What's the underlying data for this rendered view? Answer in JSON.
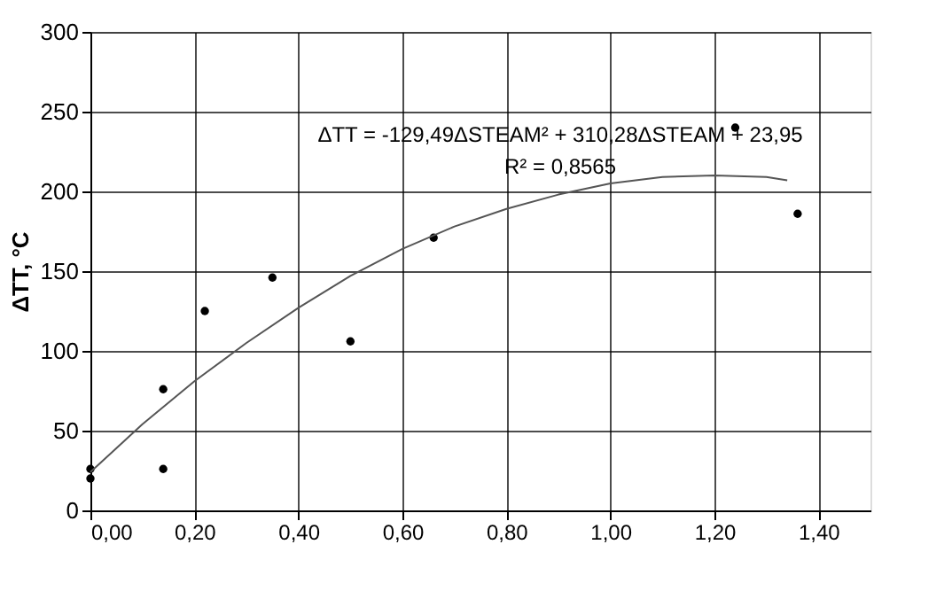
{
  "chart_data": {
    "type": "scatter",
    "ylabel": "ΔTT, °C",
    "xlim": [
      0,
      1.5
    ],
    "xticks": [
      {
        "value": 0,
        "label": "0,00"
      },
      {
        "value": 0.2,
        "label": "0,20"
      },
      {
        "value": 0.4,
        "label": "0,40"
      },
      {
        "value": 0.6,
        "label": "0,60"
      },
      {
        "value": 0.8,
        "label": "0,80"
      },
      {
        "value": 1.0,
        "label": "1,00"
      },
      {
        "value": 1.2,
        "label": "1,20"
      },
      {
        "value": 1.4,
        "label": "1,40"
      }
    ],
    "ylim": [
      0,
      300
    ],
    "yticks": [
      0,
      50,
      100,
      150,
      200,
      250,
      300
    ],
    "grid": true,
    "marker": "circle",
    "annotations": [
      "ΔTT = -129,49ΔSTEAM² + 310,28ΔSTEAM + 23,95",
      "R² = 0,8565"
    ],
    "series": [
      {
        "color": "#000000",
        "x": [
          0.0,
          0.0,
          0.14,
          0.14,
          0.22,
          0.35,
          0.5,
          0.66,
          1.24,
          1.36
        ],
        "values": [
          20,
          26,
          76,
          26,
          125,
          146,
          106,
          171,
          240,
          186
        ]
      },
      {
        "type": "line",
        "color": "#555555",
        "marker": "none",
        "x": [
          0,
          0.1,
          0.2,
          0.3,
          0.4,
          0.5,
          0.6,
          0.7,
          0.8,
          0.9,
          1.0,
          1.1,
          1.2,
          1.3,
          1.34
        ],
        "values": [
          24,
          54,
          81,
          105,
          127,
          147,
          164,
          178,
          189,
          198,
          205,
          209,
          210,
          209,
          207
        ]
      }
    ]
  }
}
